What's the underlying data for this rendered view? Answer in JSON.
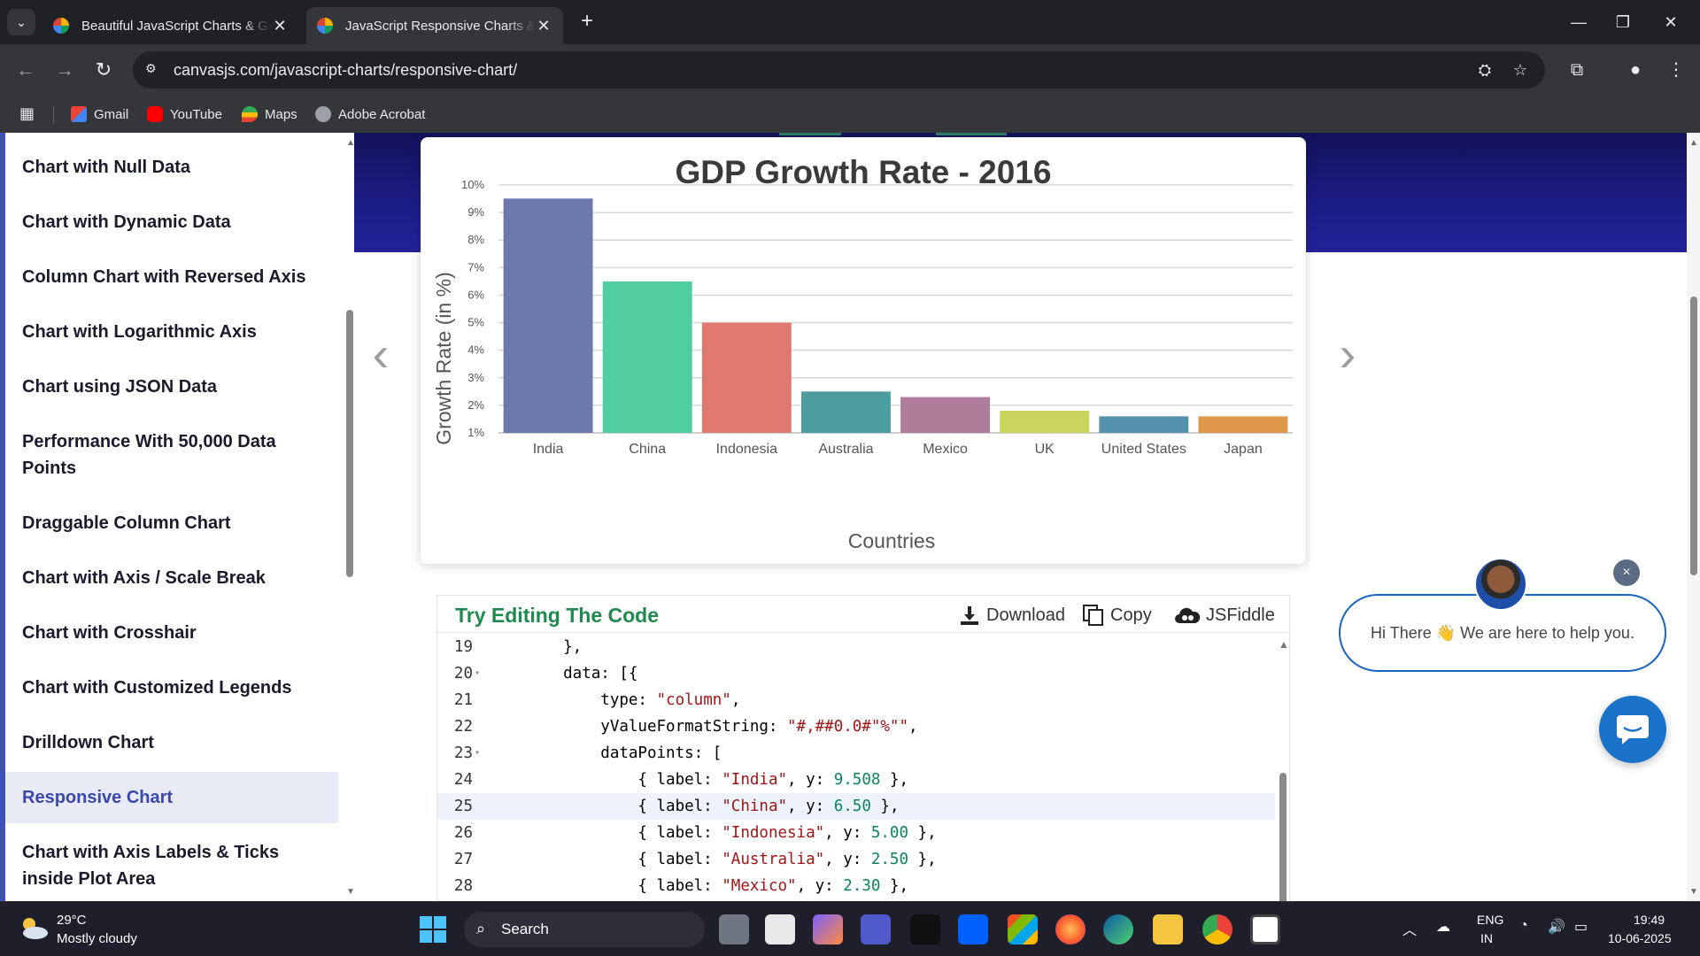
{
  "browser": {
    "tabs": [
      {
        "title": "Beautiful JavaScript Charts & Graphs",
        "active": false
      },
      {
        "title": "JavaScript Responsive Charts & Graphs",
        "active": true
      }
    ],
    "url": "canvasjs.com/javascript-charts/responsive-chart/",
    "bookmarks": [
      {
        "label": "Gmail",
        "icon": "gmail-icon"
      },
      {
        "label": "YouTube",
        "icon": "youtube-icon"
      },
      {
        "label": "Maps",
        "icon": "maps-icon"
      },
      {
        "label": "Adobe Acrobat",
        "icon": "globe-icon"
      }
    ]
  },
  "sidebar": {
    "items": [
      {
        "label": "Chart with Null Data"
      },
      {
        "label": "Chart with Dynamic Data"
      },
      {
        "label": "Column Chart with Reversed Axis"
      },
      {
        "label": "Chart with Logarithmic Axis"
      },
      {
        "label": "Chart using JSON Data"
      },
      {
        "label": "Performance With 50,000 Data Points"
      },
      {
        "label": "Draggable Column Chart"
      },
      {
        "label": "Chart with Axis / Scale Break"
      },
      {
        "label": "Chart with Crosshair"
      },
      {
        "label": "Chart with Customized Legends"
      },
      {
        "label": "Drilldown Chart"
      },
      {
        "label": "Responsive Chart",
        "active": true
      },
      {
        "label": "Chart with Axis Labels & Ticks inside Plot Area"
      }
    ]
  },
  "chart_data": {
    "type": "bar",
    "title": "GDP Growth Rate - 2016",
    "xlabel": "Countries",
    "ylabel": "Growth Rate (in %)",
    "categories": [
      "India",
      "China",
      "Indonesia",
      "Australia",
      "Mexico",
      "UK",
      "United States",
      "Japan"
    ],
    "values": [
      9.508,
      6.5,
      5.0,
      2.5,
      2.3,
      1.8,
      1.6,
      1.6
    ],
    "colors": [
      "#6d78ad",
      "#51cda0",
      "#df7970",
      "#4c9ca0",
      "#ae7d99",
      "#c9d45c",
      "#5592ad",
      "#df984b"
    ],
    "ylim": [
      1,
      10
    ],
    "yticks": [
      "1%",
      "2%",
      "3%",
      "4%",
      "5%",
      "6%",
      "7%",
      "8%",
      "9%",
      "10%"
    ],
    "grid": true
  },
  "editor": {
    "title": "Try Editing The Code",
    "actions": [
      {
        "label": "Download",
        "icon": "download-icon"
      },
      {
        "label": "Copy",
        "icon": "copy-icon"
      },
      {
        "label": "JSFiddle",
        "icon": "jsfiddle-icon"
      }
    ],
    "lines": [
      {
        "n": "19",
        "text": "    },",
        "fold": false
      },
      {
        "n": "20",
        "text": "    data: [{",
        "fold": true
      },
      {
        "n": "21",
        "text": "        type: \"column\",",
        "fold": false
      },
      {
        "n": "22",
        "text": "        yValueFormatString: \"#,##0.0#\"%\"\",",
        "fold": false
      },
      {
        "n": "23",
        "text": "        dataPoints: [",
        "fold": true
      },
      {
        "n": "24",
        "text": "            { label: \"India\", y: 9.508 },",
        "fold": false
      },
      {
        "n": "25",
        "text": "            { label: \"China\", y: 6.50 },",
        "fold": false,
        "active": true
      },
      {
        "n": "26",
        "text": "            { label: \"Indonesia\", y: 5.00 },",
        "fold": false
      },
      {
        "n": "27",
        "text": "            { label: \"Australia\", y: 2.50 },",
        "fold": false
      },
      {
        "n": "28",
        "text": "            { label: \"Mexico\", y: 2.30 },",
        "fold": false
      }
    ]
  },
  "chat": {
    "message": "Hi There 👋 We are here to help you.",
    "close": "×"
  },
  "taskbar": {
    "weather_temp": "29°C",
    "weather_desc": "Mostly cloudy",
    "search_label": "Search",
    "lang_1": "ENG",
    "lang_2": "IN",
    "time": "19:49",
    "date": "10-06-2025"
  }
}
